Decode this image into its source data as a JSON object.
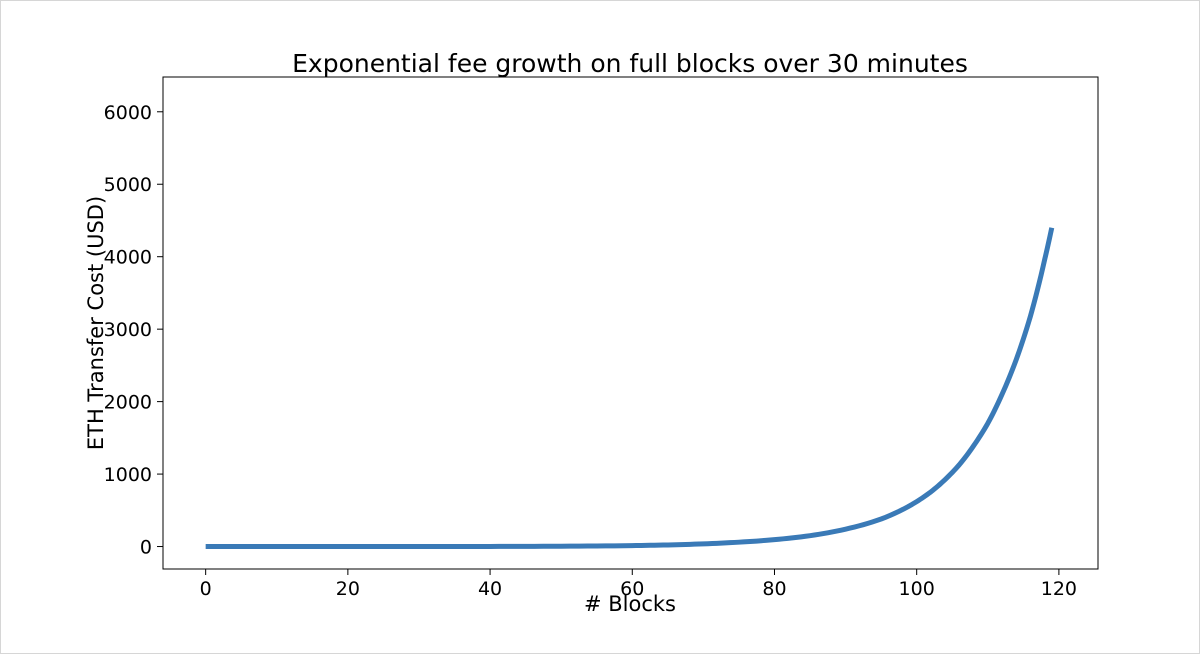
{
  "chart_data": {
    "type": "line",
    "title": "Exponential fee growth on full blocks over 30 minutes",
    "xlabel": "# Blocks",
    "ylabel": "ETH Transfer Cost (USD)",
    "xlim": [
      -6,
      125.5
    ],
    "ylim": [
      -310,
      6480
    ],
    "x_ticks": [
      0,
      20,
      40,
      60,
      80,
      100,
      120
    ],
    "y_ticks": [
      0,
      1000,
      2000,
      3000,
      4000,
      5000,
      6000
    ],
    "grid": false,
    "series": [
      {
        "color": "#3a7ab7",
        "x": [
          0,
          10,
          20,
          30,
          40,
          50,
          60,
          65,
          70,
          75,
          80,
          85,
          90,
          95,
          100,
          102,
          104,
          106,
          108,
          110,
          112,
          114,
          116,
          118,
          119
        ],
        "y": [
          0.0,
          0.01,
          0.08,
          0.3,
          1.3,
          4.4,
          13,
          22,
          37,
          60,
          95,
          150,
          240,
          380,
          620,
          755,
          925,
          1130,
          1390,
          1700,
          2100,
          2580,
          3180,
          3960,
          4400
        ],
        "y_note_removed": true
      }
    ]
  }
}
